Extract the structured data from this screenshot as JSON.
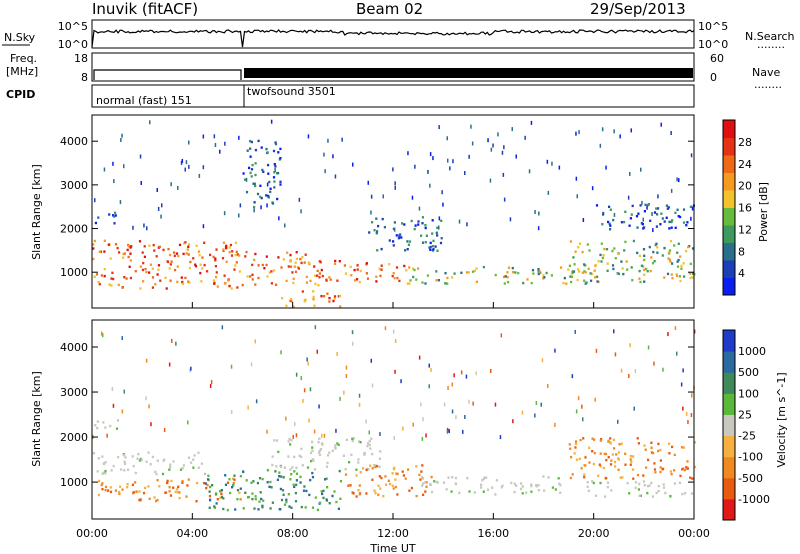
{
  "header": {
    "station": "Inuvik (fitACF)",
    "beam": "Beam 02",
    "date": "29/Sep/2013"
  },
  "top_panels": {
    "nsky_label": "N.Sky",
    "nsky_ticks": [
      "10^5",
      "10^0"
    ],
    "nsearch_label": "N.Search",
    "nsearch_ticks": [
      "10^5",
      "10^0"
    ],
    "freq_label_1": "Freq.",
    "freq_label_2": "[MHz]",
    "freq_ticks": [
      "18",
      "8"
    ],
    "nave_label": "Nave",
    "nave_ticks": [
      "60",
      "0"
    ],
    "cpid_label": "CPID",
    "cpid_modes": [
      {
        "name": "normal (fast) 151",
        "start": "00:00",
        "end": "06:00"
      },
      {
        "name": "twofsound 3501",
        "start": "06:00",
        "end": "00:00"
      }
    ],
    "legend_dots": "........"
  },
  "chart_data": [
    {
      "type": "heatmap",
      "title": "",
      "xlabel": "Time UT",
      "ylabel": "Slant Range [km]",
      "x_ticks": [
        "00:00",
        "04:00",
        "08:00",
        "12:00",
        "16:00",
        "20:00",
        "00:00"
      ],
      "x_range_hours": [
        0,
        24
      ],
      "y_ticks": [
        1000,
        2000,
        3000,
        4000
      ],
      "ylim": [
        180,
        4600
      ],
      "colorbar": {
        "label": "Power [dB]",
        "ticks": [
          "4",
          "8",
          "12",
          "16",
          "20",
          "24",
          "28"
        ],
        "range": [
          0,
          30
        ],
        "colors": [
          "#0a1eef",
          "#1c3fb8",
          "#2a6e8c",
          "#3d9a5e",
          "#66bb3a",
          "#f2c32a",
          "#f59a1f",
          "#ef6a17",
          "#e63214",
          "#e01010"
        ]
      },
      "echo_regions": [
        {
          "t0": 0.0,
          "t1": 6.0,
          "r0": 650,
          "r1": 1750,
          "level": "high"
        },
        {
          "t0": 6.0,
          "t1": 9.0,
          "r0": 700,
          "r1": 1500,
          "level": "high"
        },
        {
          "t0": 9.0,
          "t1": 12.5,
          "r0": 800,
          "r1": 1300,
          "level": "high"
        },
        {
          "t0": 7.5,
          "t1": 10.0,
          "r0": 220,
          "r1": 600,
          "level": "high"
        },
        {
          "t0": 12.5,
          "t1": 20.0,
          "r0": 750,
          "r1": 1150,
          "level": "medium"
        },
        {
          "t0": 19.0,
          "t1": 24.0,
          "r0": 800,
          "r1": 1750,
          "level": "medium"
        },
        {
          "t0": 0.0,
          "t1": 1.0,
          "r0": 2100,
          "r1": 2400,
          "level": "low"
        },
        {
          "t0": 6.0,
          "t1": 7.5,
          "r0": 2500,
          "r1": 4100,
          "level": "low"
        },
        {
          "t0": 11.0,
          "t1": 14.0,
          "r0": 1500,
          "r1": 2300,
          "level": "low"
        },
        {
          "t0": 20.0,
          "t1": 24.0,
          "r0": 2000,
          "r1": 2600,
          "level": "low"
        }
      ]
    },
    {
      "type": "heatmap",
      "title": "",
      "xlabel": "Time UT",
      "ylabel": "Slant Range [km]",
      "x_ticks": [
        "00:00",
        "04:00",
        "08:00",
        "12:00",
        "16:00",
        "20:00",
        "00:00"
      ],
      "x_range_hours": [
        0,
        24
      ],
      "y_ticks": [
        1000,
        2000,
        3000,
        4000
      ],
      "ylim": [
        180,
        4600
      ],
      "colorbar": {
        "label": "Velocity [m s^-1]",
        "ticks": [
          "1000",
          "500",
          "100",
          "25",
          "-25",
          "-100",
          "-500",
          "-1000"
        ],
        "colors": [
          "#1e3cc8",
          "#2a6aa0",
          "#3f8a5a",
          "#5ab83a",
          "#c8c8c0",
          "#f5b040",
          "#f08a20",
          "#e85a10",
          "#e01818"
        ]
      },
      "echo_regions": [
        {
          "t0": 0.0,
          "t1": 6.0,
          "r0": 600,
          "r1": 1100,
          "level": "negative"
        },
        {
          "t0": 0.0,
          "t1": 4.5,
          "r0": 1200,
          "r1": 1700,
          "level": "ground"
        },
        {
          "t0": 4.5,
          "t1": 10.0,
          "r0": 400,
          "r1": 1300,
          "level": "positive"
        },
        {
          "t0": 7.0,
          "t1": 11.5,
          "r0": 1300,
          "r1": 2000,
          "level": "ground"
        },
        {
          "t0": 10.0,
          "t1": 13.5,
          "r0": 700,
          "r1": 1400,
          "level": "negative"
        },
        {
          "t0": 13.0,
          "t1": 19.0,
          "r0": 750,
          "r1": 1150,
          "level": "ground"
        },
        {
          "t0": 19.0,
          "t1": 24.0,
          "r0": 1100,
          "r1": 2000,
          "level": "negative"
        },
        {
          "t0": 19.5,
          "t1": 24.0,
          "r0": 700,
          "r1": 1050,
          "level": "ground"
        },
        {
          "t0": 0.0,
          "t1": 1.0,
          "r0": 2100,
          "r1": 2400,
          "level": "ground"
        }
      ]
    }
  ],
  "colors": {
    "frame": "#000000",
    "background": "#ffffff"
  }
}
